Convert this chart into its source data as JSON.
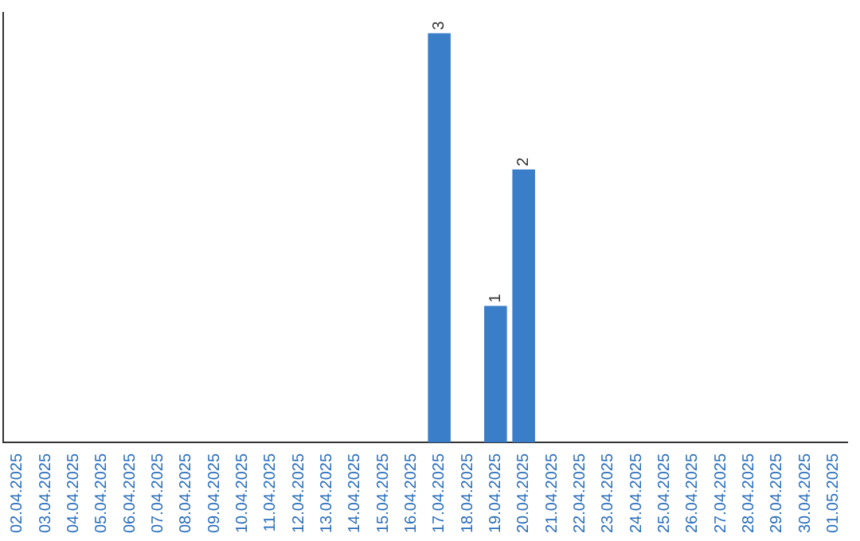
{
  "chart_data": {
    "type": "bar",
    "categories": [
      "02.04.2025",
      "03.04.2025",
      "04.04.2025",
      "05.04.2025",
      "06.04.2025",
      "07.04.2025",
      "08.04.2025",
      "09.04.2025",
      "10.04.2025",
      "11.04.2025",
      "12.04.2025",
      "13.04.2025",
      "14.04.2025",
      "15.04.2025",
      "16.04.2025",
      "17.04.2025",
      "18.04.2025",
      "19.04.2025",
      "20.04.2025",
      "21.04.2025",
      "22.04.2025",
      "23.04.2025",
      "24.04.2025",
      "25.04.2025",
      "26.04.2025",
      "27.04.2025",
      "28.04.2025",
      "29.04.2025",
      "30.04.2025",
      "01.05.2025"
    ],
    "values": [
      null,
      null,
      null,
      null,
      null,
      null,
      null,
      null,
      null,
      null,
      null,
      null,
      null,
      null,
      null,
      3,
      null,
      1,
      2,
      null,
      null,
      null,
      null,
      null,
      null,
      null,
      null,
      null,
      null,
      null
    ],
    "value_labels": [
      null,
      null,
      null,
      null,
      null,
      null,
      null,
      null,
      null,
      null,
      null,
      null,
      null,
      null,
      null,
      "3",
      null,
      "1",
      "2",
      null,
      null,
      null,
      null,
      null,
      null,
      null,
      null,
      null,
      null,
      null
    ],
    "color": "#3a7dc9",
    "ylim": [
      0,
      3.15
    ],
    "tick_labels": "x",
    "grid": false,
    "legend": false
  }
}
